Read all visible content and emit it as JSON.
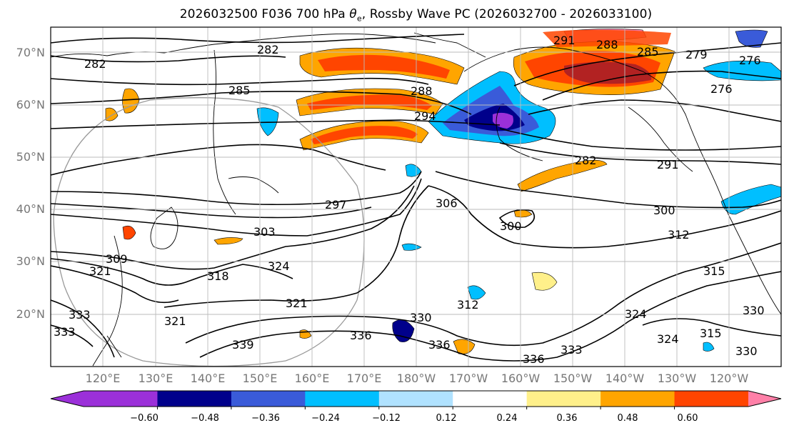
{
  "title": "2026032500 F036 700 hPa θ_e, Rossby Wave PC (2026032700 - 2026033100)",
  "lat_labels": [
    "70°N",
    "60°N",
    "50°N",
    "40°N",
    "30°N",
    "20°N"
  ],
  "lon_labels": [
    "120°E",
    "130°E",
    "140°E",
    "150°E",
    "160°E",
    "170°E",
    "180°W",
    "170°W",
    "160°W",
    "150°W",
    "140°W",
    "130°W",
    "120°W"
  ],
  "contour_labels": [
    "282",
    "282",
    "285",
    "288",
    "291",
    "288",
    "285",
    "279",
    "276",
    "276",
    "294",
    "282",
    "291",
    "297",
    "300",
    "306",
    "300",
    "312",
    "303",
    "309",
    "321",
    "324",
    "318",
    "321",
    "315",
    "312",
    "330",
    "330",
    "336",
    "333",
    "336",
    "315",
    "324",
    "330",
    "339",
    "333",
    "336",
    "333",
    "321",
    "324"
  ],
  "colorbar": {
    "colors": [
      "#9b30d9",
      "#00008b",
      "#3a5bd9",
      "#00bfff",
      "#b0e2ff",
      "#ffffff",
      "#fff08a",
      "#ffa500",
      "#ff4500",
      "#b22222",
      "#ff80a8"
    ],
    "tick_labels": [
      "−0.60",
      "−0.48",
      "−0.36",
      "−0.24",
      "−0.12",
      "0.12",
      "0.24",
      "0.36",
      "0.48",
      "0.60"
    ],
    "under_color": "#9b30d9",
    "over_color": "#ff80a8"
  },
  "anomaly_colors": {
    "positive_low": "#fff08a",
    "positive_mid": "#ffa500",
    "positive_high": "#ff4500",
    "positive_max": "#b22222",
    "negative_low": "#00bfff",
    "negative_mid": "#3a5bd9",
    "negative_high": "#00008b",
    "negative_max": "#9b30d9"
  }
}
